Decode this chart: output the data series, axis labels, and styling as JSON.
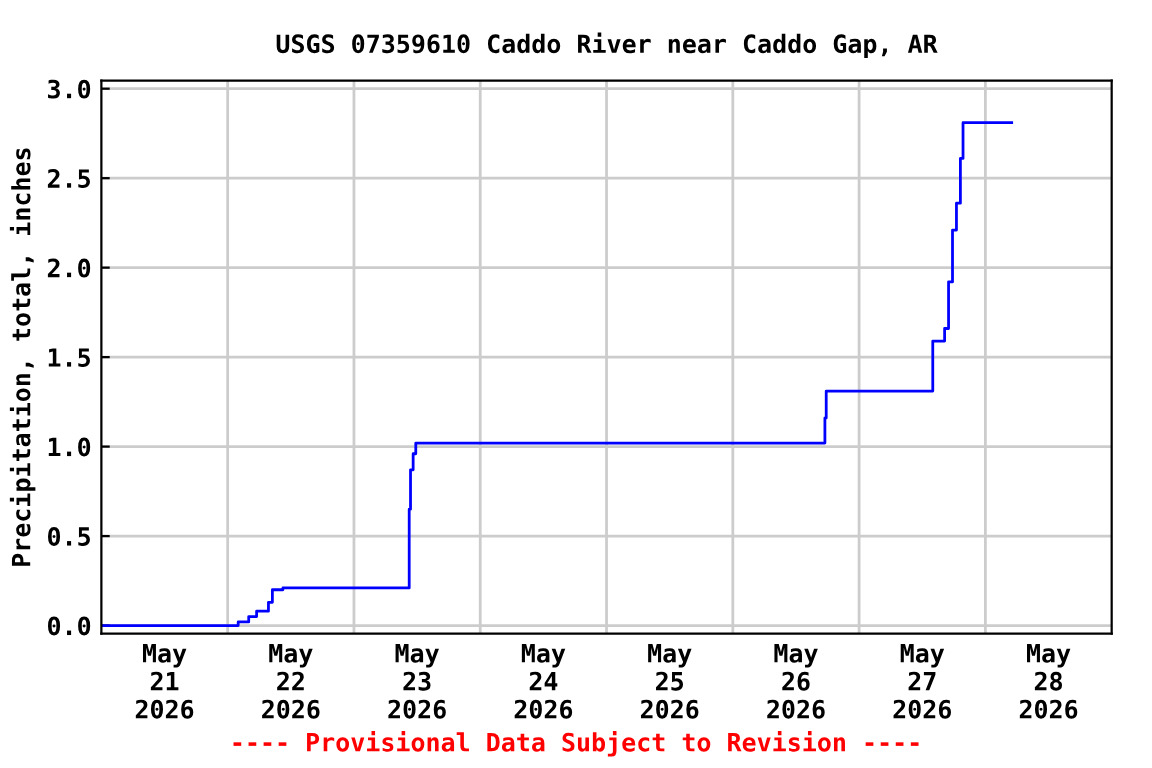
{
  "chart_data": {
    "type": "step",
    "title": "USGS 07359610 Caddo River near Caddo Gap, AR",
    "ylabel": "Precipitation, total, inches",
    "x": [
      "2026-05-21T00:00",
      "2026-05-22T02:00",
      "2026-05-22T04:00",
      "2026-05-22T05:30",
      "2026-05-22T07:45",
      "2026-05-22T08:30",
      "2026-05-22T10:30",
      "2026-05-23T10:30",
      "2026-05-23T10:45",
      "2026-05-23T11:15",
      "2026-05-23T11:45",
      "2026-05-26T17:30",
      "2026-05-26T17:45",
      "2026-05-27T14:00",
      "2026-05-27T16:15",
      "2026-05-27T17:00",
      "2026-05-27T17:45",
      "2026-05-27T18:30",
      "2026-05-27T19:15",
      "2026-05-27T19:45",
      "2026-05-28T05:00"
    ],
    "series": [
      {
        "color": "#0000ff",
        "values": [
          0.0,
          0.02,
          0.05,
          0.08,
          0.13,
          0.2,
          0.21,
          0.65,
          0.87,
          0.96,
          1.02,
          1.16,
          1.31,
          1.59,
          1.66,
          1.92,
          2.21,
          2.36,
          2.61,
          2.81,
          2.81
        ]
      }
    ],
    "xlim": [
      "2026-05-21T00:00",
      "2026-05-29T00:00"
    ],
    "xticks": [
      {
        "value": "2026-05-21T12:00",
        "label": "May\n21\n2026"
      },
      {
        "value": "2026-05-22T12:00",
        "label": "May\n22\n2026"
      },
      {
        "value": "2026-05-23T12:00",
        "label": "May\n23\n2026"
      },
      {
        "value": "2026-05-24T12:00",
        "label": "May\n24\n2026"
      },
      {
        "value": "2026-05-25T12:00",
        "label": "May\n25\n2026"
      },
      {
        "value": "2026-05-26T12:00",
        "label": "May\n26\n2026"
      },
      {
        "value": "2026-05-27T12:00",
        "label": "May\n27\n2026"
      },
      {
        "value": "2026-05-28T12:00",
        "label": "May\n28\n2026"
      },
      {
        "value": "2026-05-22T00:00",
        "label": null
      },
      {
        "value": "2026-05-23T00:00",
        "label": null
      },
      {
        "value": "2026-05-24T00:00",
        "label": null
      },
      {
        "value": "2026-05-25T00:00",
        "label": null
      },
      {
        "value": "2026-05-26T00:00",
        "label": null
      },
      {
        "value": "2026-05-27T00:00",
        "label": null
      },
      {
        "value": "2026-05-28T00:00",
        "label": null
      }
    ],
    "ylim": [
      -0.045,
      3.045
    ],
    "yticks": [
      {
        "value": 0.0,
        "label": "0.0"
      },
      0.5,
      {
        "value": 1.0,
        "label": "1.0"
      },
      1.5,
      {
        "value": 2.0,
        "label": "2.0"
      },
      2.5,
      {
        "value": 3.0,
        "label": "3.0"
      }
    ],
    "grid": true,
    "marker": "none",
    "line_style": "solid",
    "annotations": [
      "---- Provisional Data Subject to Revision ----"
    ]
  }
}
